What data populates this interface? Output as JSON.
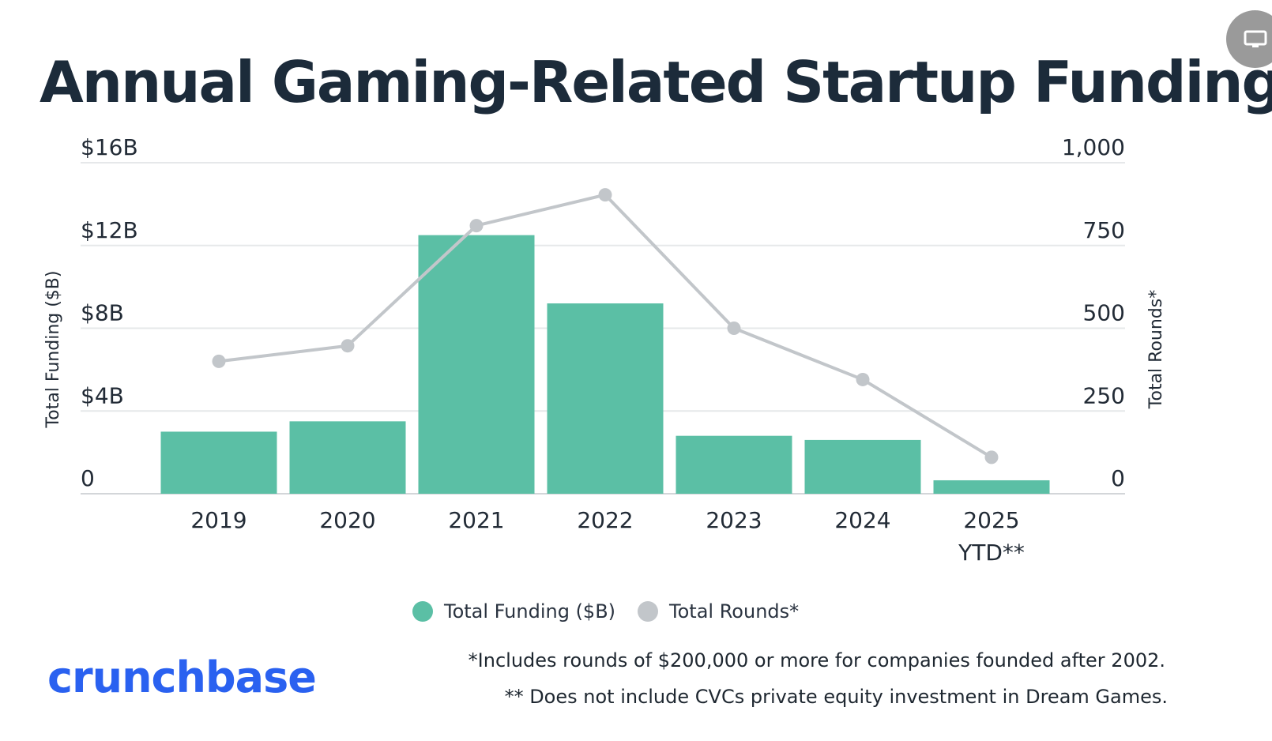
{
  "title": "Annual Gaming-Related Startup Funding",
  "colors": {
    "funding": "#5bbfa5",
    "rounds": "#c2c6ca",
    "grid": "#e6e8ea",
    "brand": "#2a61f0",
    "title": "#1c2b3a"
  },
  "chart_data": {
    "type": "bar",
    "categories": [
      "2019",
      "2020",
      "2021",
      "2022",
      "2023",
      "2024",
      "2025\nYTD**"
    ],
    "series": [
      {
        "name": "Total Funding ($B)",
        "type": "bar",
        "axis": "left",
        "values": [
          3.0,
          3.5,
          12.5,
          9.2,
          2.8,
          2.6,
          0.65
        ]
      },
      {
        "name": "Total Rounds*",
        "type": "line",
        "axis": "right",
        "values": [
          400,
          447,
          810,
          903,
          500,
          345,
          110
        ]
      }
    ],
    "left_axis": {
      "label": "Total Funding ($B)",
      "ticks": [
        "0",
        "$4B",
        "$8B",
        "$12B",
        "$16B"
      ],
      "range": [
        0,
        16
      ]
    },
    "right_axis": {
      "label": "Total Rounds*",
      "ticks": [
        "0",
        "250",
        "500",
        "750",
        "1,000"
      ],
      "range": [
        0,
        1000
      ]
    },
    "grid": true,
    "legend_position": "bottom"
  },
  "legend": {
    "funding_label": "Total Funding ($B)",
    "rounds_label": "Total Rounds*"
  },
  "brand": "crunchbase",
  "footnotes": {
    "line1": "*Includes rounds of $200,000 or more for companies founded after 2002.",
    "line2": "** Does not include CVCs private equity investment in Dream Games."
  },
  "icons": {
    "screen_button": "monitor-icon"
  }
}
